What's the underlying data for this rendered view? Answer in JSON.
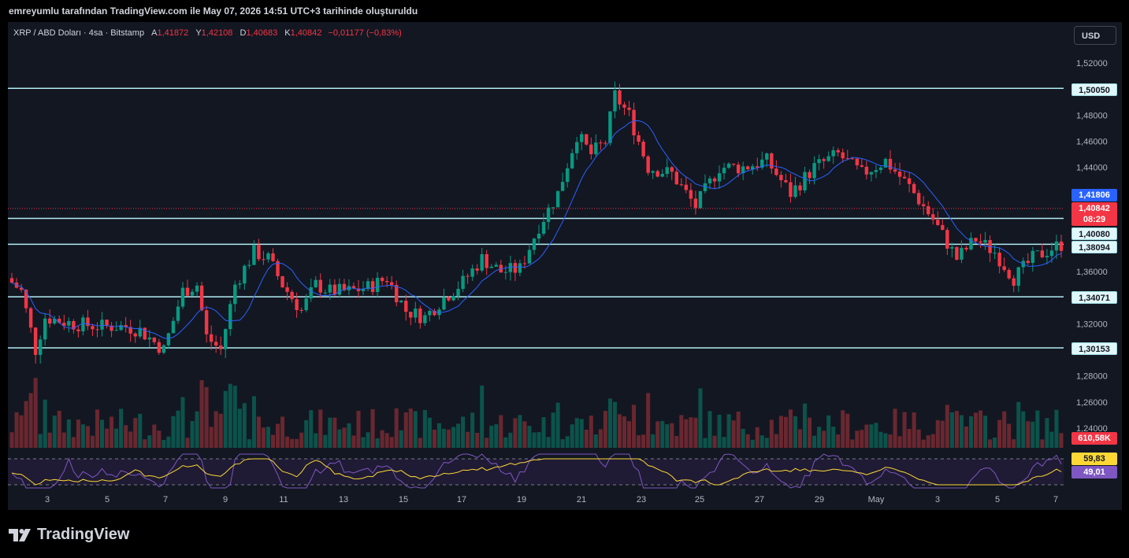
{
  "header": {
    "author_line": "emreyumlu tarafından TradingView.com ile May 07, 2026 14:51 UTC+3 tarihinde oluşturuldu"
  },
  "legend": {
    "symbol": "XRP / ABD Doları · 4sa · Bitstamp",
    "open_label": "A",
    "open": "1,41872",
    "high_label": "Y",
    "high": "1,42108",
    "low_label": "D",
    "low": "1,40683",
    "close_label": "K",
    "close": "1,40842",
    "change": "−0,01177 (−0,83%)"
  },
  "currency_button": "USD",
  "price_tags": {
    "current": "1,40842",
    "countdown": "08:29",
    "ma": "1,41806",
    "volume": "610,58K",
    "rsi": "59,83",
    "rsi_ma": "49,01"
  },
  "colors": {
    "up": "#089981",
    "down": "#f23645",
    "ma": "#2962ff",
    "level_line": "#b2ebf2",
    "rsi_line": "#7e57c2",
    "rsi_ma_line": "#fdd835",
    "background": "#131722"
  },
  "logo": {
    "text": "TradingView",
    "icon": "tradingview-logo-icon"
  },
  "chart_data": {
    "type": "candlestick",
    "symbol": "XRP/USD",
    "timeframe": "4h",
    "y_range": [
      1.275,
      1.535
    ],
    "y_ticks": [
      "1,52000",
      "1,48000",
      "1,46000",
      "1,44000",
      "1,36000",
      "1,32000",
      "1,28000",
      "1,26000",
      "1,24000"
    ],
    "y_tick_values": [
      1.52,
      1.48,
      1.46,
      1.44,
      1.36,
      1.32,
      1.28,
      1.26,
      1.24
    ],
    "x_ticks": [
      "3",
      "5",
      "7",
      "9",
      "11",
      "13",
      "15",
      "17",
      "19",
      "21",
      "23",
      "25",
      "27",
      "29",
      "May",
      "3",
      "5",
      "7"
    ],
    "levels": [
      {
        "label": "1,50050",
        "value": 1.5005
      },
      {
        "label": "1,40080",
        "value": 1.4008
      },
      {
        "label": "1,38094",
        "value": 1.38094
      },
      {
        "label": "1,34071",
        "value": 1.34071
      },
      {
        "label": "1,30153",
        "value": 1.30153
      }
    ],
    "current_price": 1.40842,
    "ma_price": 1.41806,
    "candle_count": 222,
    "anchors": [
      [
        0,
        1.355
      ],
      [
        3,
        1.345
      ],
      [
        6,
        1.3
      ],
      [
        8,
        1.325
      ],
      [
        14,
        1.32
      ],
      [
        20,
        1.318
      ],
      [
        25,
        1.318
      ],
      [
        28,
        1.315
      ],
      [
        33,
        1.3
      ],
      [
        37,
        1.345
      ],
      [
        40,
        1.35
      ],
      [
        42,
        1.31
      ],
      [
        45,
        1.3
      ],
      [
        48,
        1.35
      ],
      [
        52,
        1.375
      ],
      [
        55,
        1.37
      ],
      [
        58,
        1.35
      ],
      [
        62,
        1.33
      ],
      [
        65,
        1.35
      ],
      [
        68,
        1.345
      ],
      [
        72,
        1.345
      ],
      [
        76,
        1.348
      ],
      [
        80,
        1.355
      ],
      [
        84,
        1.33
      ],
      [
        88,
        1.325
      ],
      [
        92,
        1.34
      ],
      [
        96,
        1.352
      ],
      [
        100,
        1.37
      ],
      [
        104,
        1.36
      ],
      [
        108,
        1.362
      ],
      [
        112,
        1.395
      ],
      [
        116,
        1.42
      ],
      [
        120,
        1.465
      ],
      [
        123,
        1.45
      ],
      [
        126,
        1.46
      ],
      [
        128,
        1.495
      ],
      [
        131,
        1.48
      ],
      [
        135,
        1.44
      ],
      [
        140,
        1.435
      ],
      [
        145,
        1.41
      ],
      [
        150,
        1.44
      ],
      [
        155,
        1.44
      ],
      [
        160,
        1.445
      ],
      [
        165,
        1.42
      ],
      [
        170,
        1.44
      ],
      [
        175,
        1.45
      ],
      [
        180,
        1.435
      ],
      [
        185,
        1.445
      ],
      [
        190,
        1.425
      ],
      [
        195,
        1.4
      ],
      [
        200,
        1.37
      ],
      [
        204,
        1.385
      ],
      [
        208,
        1.375
      ],
      [
        212,
        1.355
      ],
      [
        216,
        1.37
      ],
      [
        220,
        1.378
      ],
      [
        225,
        1.385
      ],
      [
        230,
        1.39
      ],
      [
        235,
        1.395
      ],
      [
        240,
        1.4
      ],
      [
        245,
        1.41
      ],
      [
        250,
        1.405
      ],
      [
        255,
        1.415
      ],
      [
        258,
        1.44
      ],
      [
        260,
        1.45
      ],
      [
        263,
        1.415
      ],
      [
        266,
        1.41
      ]
    ],
    "volume": {
      "ylim_label": "610,58K"
    },
    "rsi": {
      "upper": 70,
      "lower": 30,
      "value": 59.83,
      "ma": 49.01
    }
  }
}
